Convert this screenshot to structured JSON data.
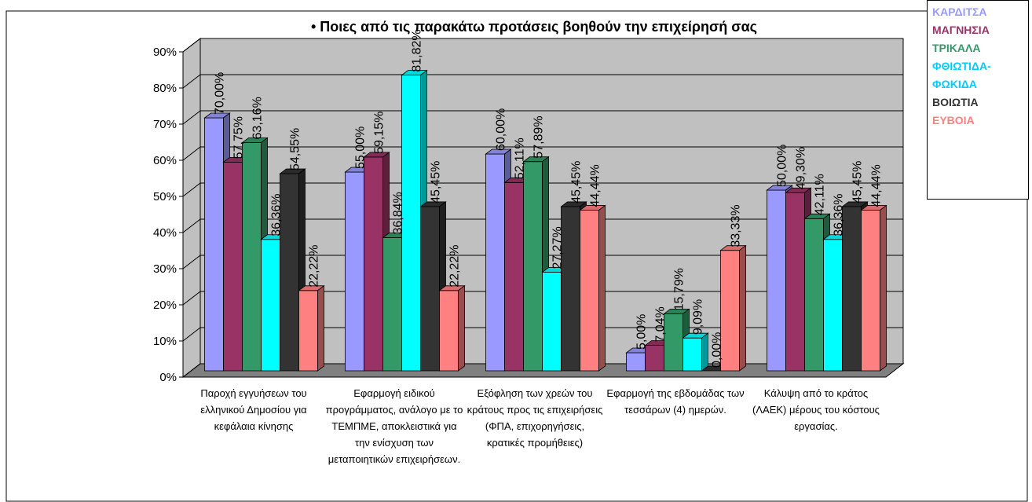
{
  "chart_data": {
    "type": "bar3d",
    "title": "• Ποιες από τις παρακάτω προτάσεις βοηθούν την επιχείρησή σας",
    "categories": [
      "Παροχή εγγυήσεων του ελληνικού Δημοσίου για κεφάλαια κίνησης",
      "Εφαρμογή ειδικού προγράμματος, ανάλογο με το ΤΕΜΠΜΕ, αποκλειστικά για την ενίσχυση των μεταποιητικών επιχειρήσεων.",
      "Εξόφληση των χρεών του κράτους προς τις επιχειρήσεις (ΦΠΑ, επιχορηγήσεις, κρατικές προμήθειες)",
      "Εφαρμογή της εβδομάδας των τεσσάρων (4) ημερών.",
      "Κάλυψη από το κράτος (ΛΑΕΚ) μέρους του κόστους εργασίας."
    ],
    "series": [
      {
        "name": "ΚΑΡΔΙΤΣΑ",
        "color": "#9999ff",
        "values": [
          70.0,
          55.0,
          60.0,
          5.0,
          50.0
        ],
        "value_labels": [
          "70,00%",
          "55,00%",
          "60,00%",
          "5,00%",
          "50,00%"
        ]
      },
      {
        "name": "ΜΑΓΝΗΣΙΑ",
        "color": "#993366",
        "values": [
          57.75,
          59.15,
          52.11,
          7.04,
          49.3
        ],
        "value_labels": [
          "57,75%",
          "59,15%",
          "52,11%",
          "7,04%",
          "49,30%"
        ]
      },
      {
        "name": "ΤΡΙΚΑΛΑ",
        "color": "#339966",
        "values": [
          63.16,
          36.84,
          57.89,
          15.79,
          42.11
        ],
        "value_labels": [
          "63,16%",
          "36,84%",
          "57,89%",
          "15,79%",
          "42,11%"
        ]
      },
      {
        "name": "ΦΘΙΩΤΙΔΑ-ΦΩΚΙΔΑ",
        "color": "#00ffff",
        "values": [
          36.36,
          81.82,
          27.27,
          9.09,
          36.36
        ],
        "value_labels": [
          "36,36%",
          "81,82%",
          "27,27%",
          "9,09%",
          "36,36%"
        ]
      },
      {
        "name": "ΒΟΙΩΤΙΑ",
        "color": "#333333",
        "values": [
          54.55,
          45.45,
          45.45,
          0.0,
          45.45
        ],
        "value_labels": [
          "54,55%",
          "45,45%",
          "45,45%",
          "0,00%",
          "45,45%"
        ]
      },
      {
        "name": "ΕΥΒΟΙΑ",
        "color": "#ff8080",
        "values": [
          22.22,
          22.22,
          44.44,
          33.33,
          44.44
        ],
        "value_labels": [
          "22,22%",
          "22,22%",
          "44,44%",
          "33,33%",
          "44,44%"
        ]
      }
    ],
    "ylim": [
      0,
      90
    ],
    "yticks": [
      {
        "value": 0,
        "label": "0%"
      },
      {
        "value": 10,
        "label": "10%"
      },
      {
        "value": 20,
        "label": "20%"
      },
      {
        "value": 30,
        "label": "30%"
      },
      {
        "value": 40,
        "label": "40%"
      },
      {
        "value": 50,
        "label": "50%"
      },
      {
        "value": 60,
        "label": "60%"
      },
      {
        "value": 70,
        "label": "70%"
      },
      {
        "value": 80,
        "label": "80%"
      },
      {
        "value": 90,
        "label": "90%"
      }
    ],
    "grid": true,
    "legend": "top-right"
  }
}
